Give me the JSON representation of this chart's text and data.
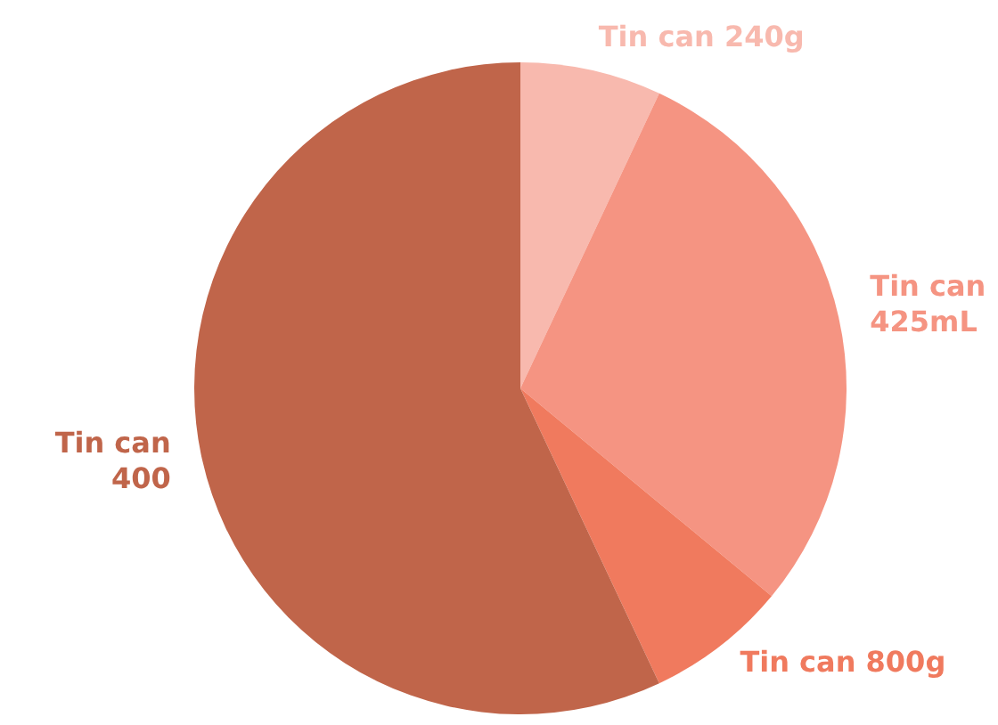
{
  "chart_data": {
    "type": "pie",
    "categories": [
      "Tin can 240g",
      "Tin can 425mL",
      "Tin can 800g",
      "Tin can 400"
    ],
    "values": [
      7,
      29,
      7,
      57
    ],
    "colors": [
      "#f8b9ae",
      "#f59482",
      "#f07a5e",
      "#c0654a"
    ]
  }
}
